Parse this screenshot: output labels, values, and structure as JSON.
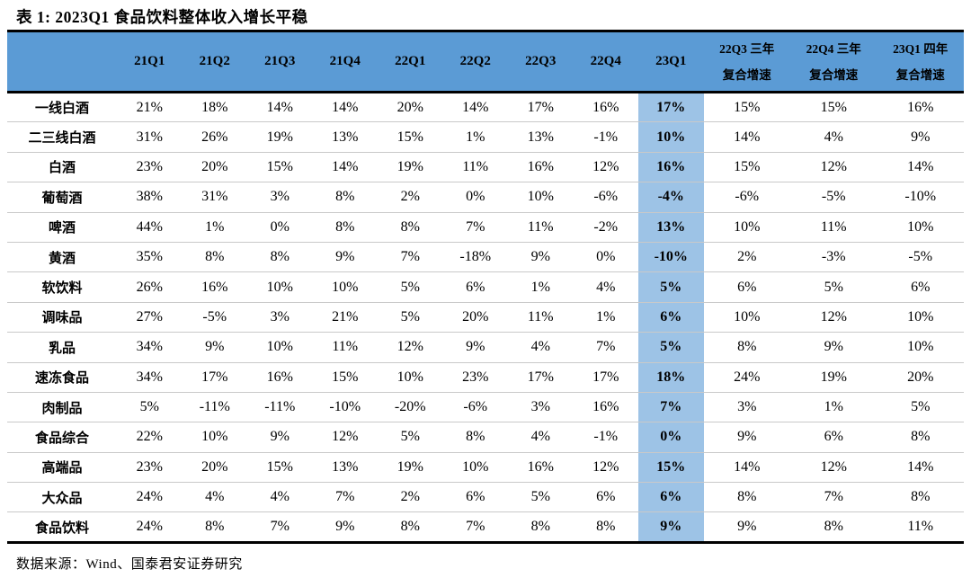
{
  "title": "表 1:  2023Q1 食品饮料整体收入增长平稳",
  "source": "数据来源：Wind、国泰君安证券研究",
  "colors": {
    "header_bg": "#5B9BD5",
    "highlight_bg": "#9DC3E6",
    "grid_line": "#C9C9C9",
    "border": "#000000"
  },
  "table": {
    "highlight_index": 8,
    "columns": [
      "21Q1",
      "21Q2",
      "21Q3",
      "21Q4",
      "22Q1",
      "22Q2",
      "22Q3",
      "22Q4",
      "23Q1"
    ],
    "cagr_columns": [
      [
        "22Q3 三年",
        "复合增速"
      ],
      [
        "22Q4 三年",
        "复合增速"
      ],
      [
        "23Q1 四年",
        "复合增速"
      ]
    ],
    "rows": [
      {
        "label": "一线白酒",
        "values": [
          "21%",
          "18%",
          "14%",
          "14%",
          "20%",
          "14%",
          "17%",
          "16%",
          "17%",
          "15%",
          "15%",
          "16%"
        ]
      },
      {
        "label": "二三线白酒",
        "values": [
          "31%",
          "26%",
          "19%",
          "13%",
          "15%",
          "1%",
          "13%",
          "-1%",
          "10%",
          "14%",
          "4%",
          "9%"
        ]
      },
      {
        "label": "白酒",
        "values": [
          "23%",
          "20%",
          "15%",
          "14%",
          "19%",
          "11%",
          "16%",
          "12%",
          "16%",
          "15%",
          "12%",
          "14%"
        ]
      },
      {
        "label": "葡萄酒",
        "values": [
          "38%",
          "31%",
          "3%",
          "8%",
          "2%",
          "0%",
          "10%",
          "-6%",
          "-4%",
          "-6%",
          "-5%",
          "-10%"
        ]
      },
      {
        "label": "啤酒",
        "values": [
          "44%",
          "1%",
          "0%",
          "8%",
          "8%",
          "7%",
          "11%",
          "-2%",
          "13%",
          "10%",
          "11%",
          "10%"
        ]
      },
      {
        "label": "黄酒",
        "values": [
          "35%",
          "8%",
          "8%",
          "9%",
          "7%",
          "-18%",
          "9%",
          "0%",
          "-10%",
          "2%",
          "-3%",
          "-5%"
        ]
      },
      {
        "label": "软饮料",
        "values": [
          "26%",
          "16%",
          "10%",
          "10%",
          "5%",
          "6%",
          "1%",
          "4%",
          "5%",
          "6%",
          "5%",
          "6%"
        ]
      },
      {
        "label": "调味品",
        "values": [
          "27%",
          "-5%",
          "3%",
          "21%",
          "5%",
          "20%",
          "11%",
          "1%",
          "6%",
          "10%",
          "12%",
          "10%"
        ]
      },
      {
        "label": "乳品",
        "values": [
          "34%",
          "9%",
          "10%",
          "11%",
          "12%",
          "9%",
          "4%",
          "7%",
          "5%",
          "8%",
          "9%",
          "10%"
        ]
      },
      {
        "label": "速冻食品",
        "values": [
          "34%",
          "17%",
          "16%",
          "15%",
          "10%",
          "23%",
          "17%",
          "17%",
          "18%",
          "24%",
          "19%",
          "20%"
        ]
      },
      {
        "label": "肉制品",
        "values": [
          "5%",
          "-11%",
          "-11%",
          "-10%",
          "-20%",
          "-6%",
          "3%",
          "16%",
          "7%",
          "3%",
          "1%",
          "5%"
        ]
      },
      {
        "label": "食品综合",
        "values": [
          "22%",
          "10%",
          "9%",
          "12%",
          "5%",
          "8%",
          "4%",
          "-1%",
          "0%",
          "9%",
          "6%",
          "8%"
        ]
      },
      {
        "label": "高端品",
        "values": [
          "23%",
          "20%",
          "15%",
          "13%",
          "19%",
          "10%",
          "16%",
          "12%",
          "15%",
          "14%",
          "12%",
          "14%"
        ]
      },
      {
        "label": "大众品",
        "values": [
          "24%",
          "4%",
          "4%",
          "7%",
          "2%",
          "6%",
          "5%",
          "6%",
          "6%",
          "8%",
          "7%",
          "8%"
        ]
      },
      {
        "label": "食品饮料",
        "values": [
          "24%",
          "8%",
          "7%",
          "9%",
          "8%",
          "7%",
          "8%",
          "8%",
          "9%",
          "9%",
          "8%",
          "11%"
        ]
      }
    ]
  }
}
